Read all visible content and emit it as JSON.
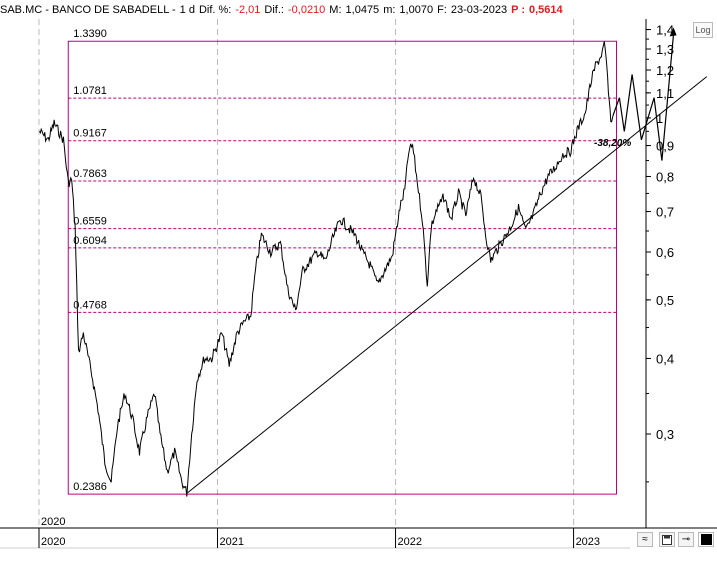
{
  "header": {
    "symbol": "SAB.MC - BANCO DE SABADELL -",
    "period": "1 d",
    "dif_pct_label": "Dif. %:",
    "dif_pct_value": "-2,01",
    "dif_label": "Dif.:",
    "dif_value": "-0,0210",
    "max_label": "M:",
    "max_value": "1,0475",
    "min_label": "m:",
    "min_value": "1,0070",
    "date_label": "F:",
    "date_value": "23-03-2023",
    "price_label": "P :",
    "price_value": "0,5614"
  },
  "log_button_label": "Log",
  "chart_data": {
    "type": "line",
    "yscale": "log",
    "ylim": [
      0.22,
      1.5
    ],
    "y_ticks": [
      "1,4",
      "1,3",
      "1,2",
      "1,1",
      "1",
      "0,9",
      "0,8",
      "0,7",
      "0,6",
      "0,5",
      "0,4",
      "0,3"
    ],
    "x_ticks": [
      "2020",
      "2021",
      "2022",
      "2023"
    ],
    "x_top_label": "2020",
    "fib_levels": [
      "1.3390",
      "1.0781",
      "0.9167",
      "0.7863",
      "0.6559",
      "0.6094",
      "0.4768",
      "0.2386"
    ],
    "annotation": "-38,20%",
    "colors": {
      "fib": "#c0007a",
      "price": "#000000",
      "negative": "#e01c1c"
    },
    "series": [
      {
        "values": [
          [
            "2020-01-02",
            0.95
          ],
          [
            "2020-01-20",
            0.92
          ],
          [
            "2020-02-01",
            0.98
          ],
          [
            "2020-02-20",
            0.92
          ],
          [
            "2020-03-01",
            0.78
          ],
          [
            "2020-03-08",
            0.79
          ],
          [
            "2020-03-15",
            0.66
          ],
          [
            "2020-03-22",
            0.41
          ],
          [
            "2020-04-01",
            0.44
          ],
          [
            "2020-04-20",
            0.37
          ],
          [
            "2020-05-01",
            0.33
          ],
          [
            "2020-05-15",
            0.27
          ],
          [
            "2020-05-28",
            0.25
          ],
          [
            "2020-06-10",
            0.31
          ],
          [
            "2020-06-25",
            0.35
          ],
          [
            "2020-07-10",
            0.32
          ],
          [
            "2020-07-25",
            0.28
          ],
          [
            "2020-08-10",
            0.32
          ],
          [
            "2020-08-25",
            0.35
          ],
          [
            "2020-09-05",
            0.3
          ],
          [
            "2020-09-20",
            0.26
          ],
          [
            "2020-10-05",
            0.28
          ],
          [
            "2020-10-20",
            0.25
          ],
          [
            "2020-10-30",
            0.24
          ],
          [
            "2020-11-09",
            0.3
          ],
          [
            "2020-11-20",
            0.37
          ],
          [
            "2020-12-05",
            0.4
          ],
          [
            "2020-12-20",
            0.4
          ],
          [
            "2021-01-10",
            0.44
          ],
          [
            "2021-01-25",
            0.39
          ],
          [
            "2021-02-10",
            0.44
          ],
          [
            "2021-02-25",
            0.46
          ],
          [
            "2021-03-10",
            0.47
          ],
          [
            "2021-03-20",
            0.56
          ],
          [
            "2021-04-01",
            0.64
          ],
          [
            "2021-04-20",
            0.6
          ],
          [
            "2021-05-10",
            0.62
          ],
          [
            "2021-05-25",
            0.52
          ],
          [
            "2021-06-10",
            0.48
          ],
          [
            "2021-06-25",
            0.56
          ],
          [
            "2021-07-10",
            0.58
          ],
          [
            "2021-07-25",
            0.6
          ],
          [
            "2021-08-10",
            0.58
          ],
          [
            "2021-08-25",
            0.63
          ],
          [
            "2021-09-10",
            0.68
          ],
          [
            "2021-09-25",
            0.66
          ],
          [
            "2021-10-10",
            0.64
          ],
          [
            "2021-10-25",
            0.6
          ],
          [
            "2021-11-10",
            0.57
          ],
          [
            "2021-11-25",
            0.53
          ],
          [
            "2021-12-10",
            0.56
          ],
          [
            "2021-12-25",
            0.59
          ],
          [
            "2022-01-10",
            0.71
          ],
          [
            "2022-01-20",
            0.76
          ],
          [
            "2022-01-28",
            0.88
          ],
          [
            "2022-02-05",
            0.9
          ],
          [
            "2022-02-15",
            0.78
          ],
          [
            "2022-02-25",
            0.68
          ],
          [
            "2022-03-07",
            0.53
          ],
          [
            "2022-03-15",
            0.66
          ],
          [
            "2022-03-25",
            0.7
          ],
          [
            "2022-04-10",
            0.74
          ],
          [
            "2022-04-25",
            0.68
          ],
          [
            "2022-05-10",
            0.75
          ],
          [
            "2022-05-25",
            0.69
          ],
          [
            "2022-06-10",
            0.8
          ],
          [
            "2022-06-25",
            0.74
          ],
          [
            "2022-07-05",
            0.64
          ],
          [
            "2022-07-15",
            0.58
          ],
          [
            "2022-07-25",
            0.6
          ],
          [
            "2022-08-10",
            0.63
          ],
          [
            "2022-08-25",
            0.66
          ],
          [
            "2022-09-10",
            0.71
          ],
          [
            "2022-09-25",
            0.65
          ],
          [
            "2022-10-10",
            0.69
          ],
          [
            "2022-10-25",
            0.75
          ],
          [
            "2022-11-10",
            0.8
          ],
          [
            "2022-11-25",
            0.83
          ],
          [
            "2022-12-10",
            0.87
          ],
          [
            "2022-12-25",
            0.88
          ],
          [
            "2023-01-10",
            0.96
          ],
          [
            "2023-01-25",
            1.02
          ],
          [
            "2023-02-05",
            1.14
          ],
          [
            "2023-02-15",
            1.22
          ],
          [
            "2023-02-25",
            1.26
          ],
          [
            "2023-03-05",
            1.32
          ],
          [
            "2023-03-10",
            1.22
          ],
          [
            "2023-03-15",
            1.05
          ],
          [
            "2023-03-20",
            0.98
          ],
          [
            "2023-03-23",
            1.01
          ]
        ]
      }
    ],
    "projection": [
      [
        "2023-03-23",
        1.01
      ],
      [
        "2023-04-05",
        1.08
      ],
      [
        "2023-04-15",
        0.95
      ],
      [
        "2023-05-01",
        1.18
      ],
      [
        "2023-05-20",
        0.92
      ],
      [
        "2023-06-15",
        1.08
      ],
      [
        "2023-07-01",
        0.85
      ],
      [
        "2023-07-25",
        1.38
      ]
    ],
    "trendline": [
      [
        "2020-11-01",
        0.24
      ],
      [
        "2023-10-01",
        1.17
      ]
    ]
  }
}
